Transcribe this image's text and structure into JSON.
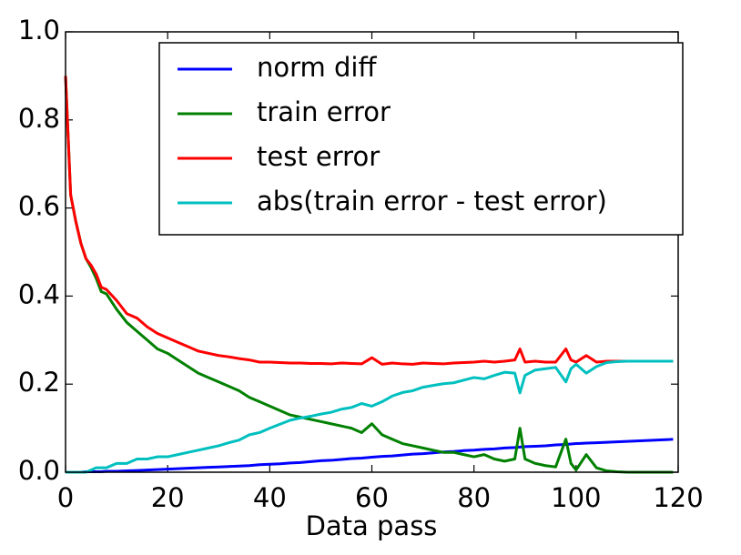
{
  "chart_data": {
    "type": "line",
    "x_label": "Data pass",
    "x": [
      0,
      1,
      2,
      3,
      4,
      5,
      6,
      7,
      8,
      10,
      12,
      14,
      16,
      18,
      20,
      22,
      24,
      26,
      28,
      30,
      32,
      34,
      36,
      38,
      40,
      42,
      44,
      46,
      48,
      50,
      52,
      54,
      56,
      58,
      60,
      62,
      64,
      66,
      68,
      70,
      72,
      74,
      76,
      78,
      80,
      82,
      84,
      86,
      88,
      89,
      90,
      92,
      94,
      96,
      98,
      99,
      100,
      102,
      104,
      106,
      108,
      110,
      112,
      114,
      116,
      118,
      119
    ],
    "series": [
      {
        "name": "norm diff",
        "color": "#0000ff",
        "values": [
          0,
          0,
          0,
          0,
          0.001,
          0.001,
          0.001,
          0.001,
          0.002,
          0.002,
          0.003,
          0.004,
          0.005,
          0.006,
          0.007,
          0.008,
          0.009,
          0.01,
          0.011,
          0.012,
          0.013,
          0.014,
          0.015,
          0.017,
          0.018,
          0.019,
          0.021,
          0.022,
          0.024,
          0.026,
          0.027,
          0.029,
          0.031,
          0.032,
          0.034,
          0.036,
          0.037,
          0.039,
          0.041,
          0.042,
          0.044,
          0.046,
          0.047,
          0.049,
          0.05,
          0.052,
          0.053,
          0.055,
          0.056,
          0.057,
          0.058,
          0.059,
          0.06,
          0.062,
          0.063,
          0.064,
          0.065,
          0.066,
          0.067,
          0.068,
          0.069,
          0.07,
          0.071,
          0.072,
          0.073,
          0.074,
          0.075
        ]
      },
      {
        "name": "train error",
        "color": "#008000",
        "values": [
          0.9,
          0.63,
          0.57,
          0.52,
          0.485,
          0.465,
          0.44,
          0.41,
          0.405,
          0.37,
          0.34,
          0.32,
          0.3,
          0.28,
          0.27,
          0.255,
          0.24,
          0.225,
          0.215,
          0.205,
          0.195,
          0.185,
          0.17,
          0.16,
          0.15,
          0.14,
          0.13,
          0.125,
          0.12,
          0.115,
          0.11,
          0.105,
          0.1,
          0.09,
          0.11,
          0.085,
          0.075,
          0.065,
          0.06,
          0.055,
          0.05,
          0.045,
          0.045,
          0.04,
          0.035,
          0.04,
          0.03,
          0.025,
          0.03,
          0.1,
          0.03,
          0.02,
          0.015,
          0.012,
          0.075,
          0.02,
          0.005,
          0.04,
          0.01,
          0.003,
          0.001,
          0,
          0,
          0,
          0,
          0,
          0
        ]
      },
      {
        "name": "test error",
        "color": "#ff0000",
        "values": [
          0.9,
          0.63,
          0.57,
          0.52,
          0.485,
          0.47,
          0.45,
          0.42,
          0.415,
          0.39,
          0.36,
          0.35,
          0.33,
          0.315,
          0.305,
          0.295,
          0.285,
          0.275,
          0.27,
          0.265,
          0.262,
          0.258,
          0.255,
          0.25,
          0.25,
          0.249,
          0.248,
          0.248,
          0.247,
          0.247,
          0.246,
          0.248,
          0.247,
          0.246,
          0.26,
          0.245,
          0.248,
          0.246,
          0.245,
          0.248,
          0.247,
          0.246,
          0.248,
          0.249,
          0.25,
          0.252,
          0.25,
          0.252,
          0.255,
          0.28,
          0.25,
          0.252,
          0.25,
          0.25,
          0.28,
          0.255,
          0.25,
          0.265,
          0.25,
          0.252,
          0.252,
          0.252,
          0.252,
          0.252,
          0.252,
          0.252,
          0.252
        ]
      },
      {
        "name": "abs(train error - test error)",
        "color": "#00bfbf",
        "values": [
          0,
          0,
          0,
          0,
          0,
          0.005,
          0.01,
          0.01,
          0.01,
          0.02,
          0.02,
          0.03,
          0.03,
          0.035,
          0.035,
          0.04,
          0.045,
          0.05,
          0.055,
          0.06,
          0.067,
          0.073,
          0.085,
          0.09,
          0.1,
          0.109,
          0.118,
          0.123,
          0.127,
          0.132,
          0.136,
          0.143,
          0.147,
          0.156,
          0.15,
          0.16,
          0.173,
          0.181,
          0.185,
          0.193,
          0.197,
          0.201,
          0.203,
          0.209,
          0.215,
          0.212,
          0.22,
          0.227,
          0.225,
          0.18,
          0.22,
          0.232,
          0.235,
          0.238,
          0.205,
          0.235,
          0.245,
          0.225,
          0.24,
          0.249,
          0.251,
          0.252,
          0.252,
          0.252,
          0.252,
          0.252,
          0.252
        ]
      }
    ],
    "xlim": [
      0,
      120
    ],
    "xticks": [
      0,
      20,
      40,
      60,
      80,
      100,
      120
    ],
    "ylim": [
      0,
      1
    ],
    "yticks": [
      {
        "value": 0,
        "label": "0.0"
      },
      0.2,
      0.4,
      0.6,
      0.8,
      {
        "value": 1,
        "label": "1.0"
      }
    ],
    "legend": "upper right"
  }
}
